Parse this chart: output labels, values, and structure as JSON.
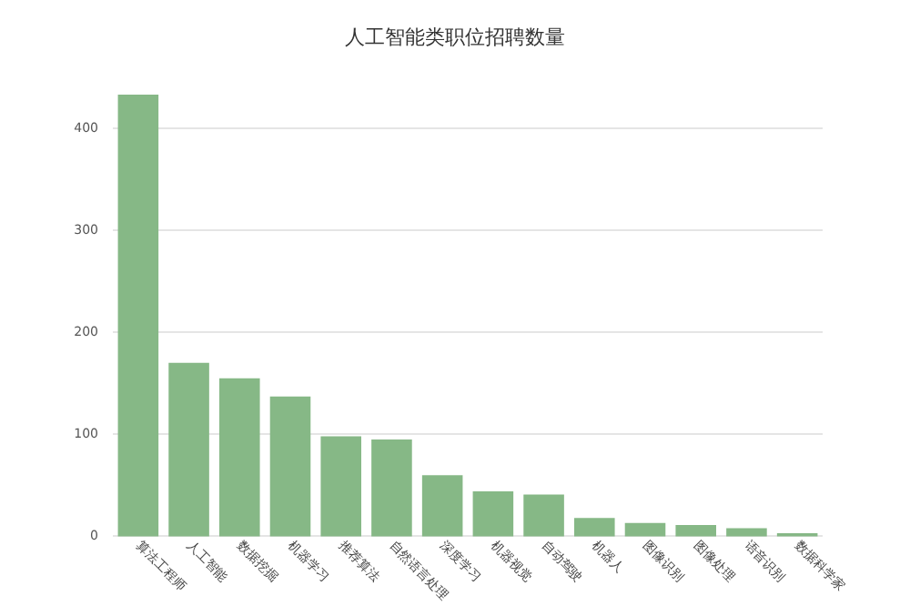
{
  "chart_data": {
    "type": "bar",
    "title": "人工智能类职位招聘数量",
    "categories": [
      "算法工程师",
      "人工智能",
      "数据挖掘",
      "机器学习",
      "推荐算法",
      "自然语言处理",
      "深度学习",
      "机器视觉",
      "自动驾驶",
      "机器人",
      "图像识别",
      "图像处理",
      "语音识别",
      "数据科学家"
    ],
    "values": [
      433,
      170,
      155,
      137,
      98,
      95,
      60,
      44,
      41,
      18,
      13,
      11,
      8,
      3
    ],
    "color": "#86b886",
    "ylim": [
      0,
      433
    ],
    "yticks": [
      0,
      100,
      200,
      300,
      400
    ],
    "grid": "y"
  }
}
